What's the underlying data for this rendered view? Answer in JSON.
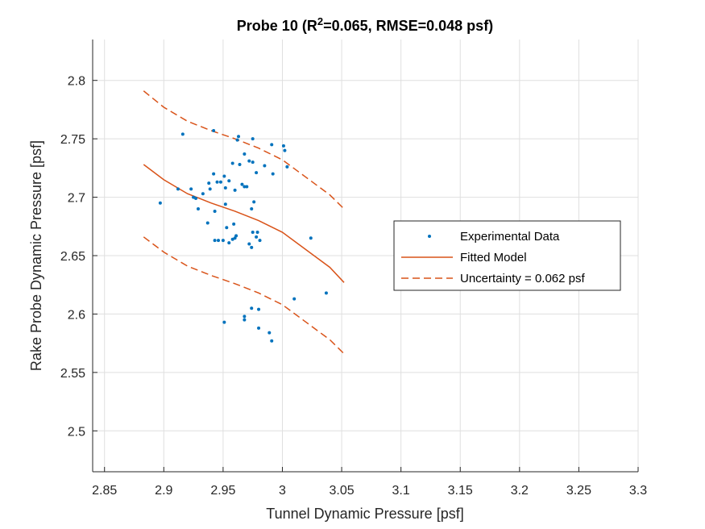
{
  "chart_data": {
    "type": "scatter",
    "title": "Probe 10 (R²=0.065, RMSE=0.048 psf)",
    "xlabel": "Tunnel Dynamic Pressure [psf]",
    "ylabel": "Rake Probe Dynamic Pressure [psf]",
    "xlim": [
      2.84,
      3.3
    ],
    "ylim": [
      2.465,
      2.835
    ],
    "xticks": [
      2.85,
      2.9,
      2.95,
      3,
      3.05,
      3.1,
      3.15,
      3.2,
      3.25,
      3.3
    ],
    "xtick_labels": [
      "2.85",
      "2.9",
      "2.95",
      "3",
      "3.05",
      "3.1",
      "3.15",
      "3.2",
      "3.25",
      "3.3"
    ],
    "yticks": [
      2.5,
      2.55,
      2.6,
      2.65,
      2.7,
      2.75,
      2.8
    ],
    "ytick_labels": [
      "2.5",
      "2.55",
      "2.6",
      "2.65",
      "2.7",
      "2.75",
      "2.8"
    ],
    "grid": true,
    "legend_position": "right",
    "series": [
      {
        "name": "Experimental Data",
        "kind": "points",
        "color": "#0072BD",
        "x": [
          2.916,
          2.942,
          2.963,
          2.975,
          2.991,
          3.001,
          3.002,
          2.897,
          2.912,
          2.923,
          2.927,
          2.929,
          2.933,
          2.937,
          2.938,
          2.939,
          2.942,
          2.945,
          2.948,
          2.951,
          2.952,
          2.955,
          2.958,
          2.96,
          2.962,
          2.964,
          2.966,
          2.968,
          2.97,
          2.972,
          2.975,
          2.978,
          2.985,
          2.992,
          3.004,
          2.925,
          2.943,
          2.946,
          2.95,
          2.953,
          2.955,
          2.959,
          2.961,
          2.974,
          2.976,
          2.978,
          2.981,
          2.943,
          2.952,
          2.958,
          2.974,
          2.979,
          3.024,
          3.01,
          3.037,
          2.951,
          2.968,
          2.968,
          2.974,
          2.98,
          2.98,
          2.989,
          2.991,
          2.96,
          2.968,
          2.972,
          2.975
        ],
        "y": [
          2.754,
          2.757,
          2.752,
          2.75,
          2.745,
          2.744,
          2.74,
          2.695,
          2.707,
          2.707,
          2.699,
          2.69,
          2.703,
          2.678,
          2.712,
          2.707,
          2.72,
          2.713,
          2.713,
          2.718,
          2.708,
          2.714,
          2.729,
          2.706,
          2.749,
          2.728,
          2.711,
          2.709,
          2.709,
          2.731,
          2.73,
          2.721,
          2.727,
          2.72,
          2.726,
          2.7,
          2.688,
          2.663,
          2.663,
          2.674,
          2.661,
          2.677,
          2.667,
          2.657,
          2.696,
          2.666,
          2.663,
          2.663,
          2.694,
          2.664,
          2.69,
          2.67,
          2.665,
          2.613,
          2.618,
          2.593,
          2.598,
          2.595,
          2.605,
          2.588,
          2.604,
          2.584,
          2.577,
          2.665,
          2.737,
          2.66,
          2.67
        ]
      },
      {
        "name": "Fitted Model",
        "kind": "line",
        "color": "#D95319",
        "dash": "solid",
        "x": [
          2.883,
          2.9,
          2.92,
          2.94,
          2.96,
          2.98,
          3.0,
          3.02,
          3.04,
          3.052
        ],
        "y": [
          2.728,
          2.715,
          2.703,
          2.695,
          2.688,
          2.68,
          2.67,
          2.655,
          2.64,
          2.627
        ]
      },
      {
        "name": "Uncertainty = 0.062 psf",
        "kind": "line",
        "color": "#D95319",
        "dash": "dashed",
        "x": [
          2.883,
          2.9,
          2.92,
          2.94,
          2.96,
          2.98,
          3.0,
          3.02,
          3.04,
          3.052
        ],
        "y": [
          2.791,
          2.777,
          2.765,
          2.757,
          2.75,
          2.742,
          2.732,
          2.717,
          2.702,
          2.69
        ]
      },
      {
        "name": "",
        "kind": "line",
        "color": "#D95319",
        "dash": "dashed",
        "legend": false,
        "x": [
          2.883,
          2.9,
          2.92,
          2.94,
          2.96,
          2.98,
          3.0,
          3.02,
          3.04,
          3.052
        ],
        "y": [
          2.666,
          2.653,
          2.641,
          2.633,
          2.626,
          2.618,
          2.608,
          2.593,
          2.578,
          2.566
        ]
      }
    ]
  }
}
